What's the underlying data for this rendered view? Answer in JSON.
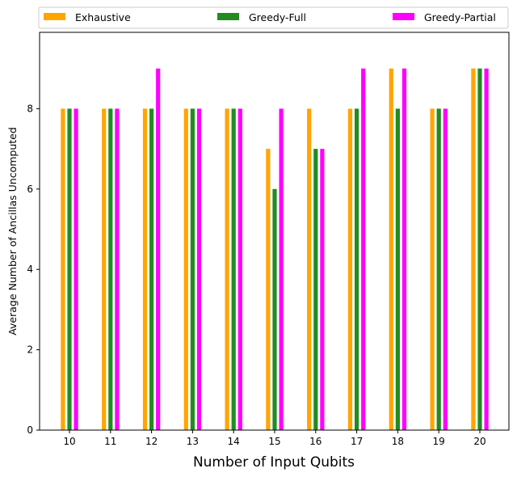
{
  "chart_data": {
    "type": "bar",
    "title": "",
    "xlabel": "Number of Input Qubits",
    "ylabel": "Average Number of Ancillas Uncomputed",
    "categories": [
      "10",
      "11",
      "12",
      "13",
      "14",
      "15",
      "16",
      "17",
      "18",
      "19",
      "20"
    ],
    "series": [
      {
        "name": "Exhaustive",
        "color": "#FFA500",
        "values": [
          8,
          8,
          8,
          8,
          8,
          7,
          8,
          8,
          9,
          8,
          9
        ]
      },
      {
        "name": "Greedy-Full",
        "color": "#228B22",
        "values": [
          8,
          8,
          8,
          8,
          8,
          6,
          7,
          8,
          8,
          8,
          9
        ]
      },
      {
        "name": "Greedy-Partial",
        "color": "#FF00FF",
        "values": [
          8,
          8,
          9,
          8,
          8,
          8,
          7,
          9,
          9,
          8,
          9
        ]
      }
    ],
    "ylim": [
      0,
      9.9
    ],
    "yticks": [
      0,
      2,
      4,
      6,
      8
    ],
    "grid": false,
    "legend_position": "top, above plot, horizontal"
  }
}
